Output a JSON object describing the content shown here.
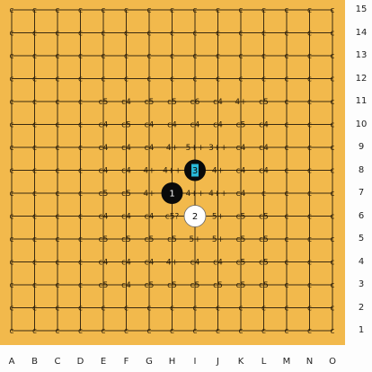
{
  "board": {
    "size": 15,
    "columns": [
      "A",
      "B",
      "C",
      "D",
      "E",
      "F",
      "G",
      "H",
      "I",
      "J",
      "K",
      "L",
      "M",
      "N",
      "O"
    ],
    "rows": [
      "15",
      "14",
      "13",
      "12",
      "11",
      "10",
      "9",
      "8",
      "7",
      "6",
      "5",
      "4",
      "3",
      "2",
      "1"
    ],
    "default_mark": "c",
    "board_color": "#f2b94c"
  },
  "marks": [
    {
      "r": 12,
      "c": 4,
      "t": "c5"
    },
    {
      "r": 12,
      "c": 5,
      "t": "c4"
    },
    {
      "r": 12,
      "c": 6,
      "t": "c5"
    },
    {
      "r": 12,
      "c": 7,
      "t": "c5"
    },
    {
      "r": 12,
      "c": 8,
      "t": "c5"
    },
    {
      "r": 12,
      "c": 9,
      "t": "c5"
    },
    {
      "r": 12,
      "c": 10,
      "t": "c5"
    },
    {
      "r": 12,
      "c": 11,
      "t": "c5"
    },
    {
      "r": 11,
      "c": 4,
      "t": "c4"
    },
    {
      "r": 11,
      "c": 5,
      "t": "c4"
    },
    {
      "r": 11,
      "c": 6,
      "t": "c4"
    },
    {
      "r": 11,
      "c": 7,
      "t": "4+"
    },
    {
      "r": 11,
      "c": 8,
      "t": "c4"
    },
    {
      "r": 11,
      "c": 9,
      "t": "c4"
    },
    {
      "r": 11,
      "c": 10,
      "t": "c5"
    },
    {
      "r": 11,
      "c": 11,
      "t": "c5"
    },
    {
      "r": 10,
      "c": 4,
      "t": "c5"
    },
    {
      "r": 10,
      "c": 5,
      "t": "c5"
    },
    {
      "r": 10,
      "c": 6,
      "t": "c5"
    },
    {
      "r": 10,
      "c": 7,
      "t": "c5"
    },
    {
      "r": 10,
      "c": 8,
      "t": "5+"
    },
    {
      "r": 10,
      "c": 9,
      "t": "5+"
    },
    {
      "r": 10,
      "c": 10,
      "t": "c5"
    },
    {
      "r": 10,
      "c": 11,
      "t": "c5"
    },
    {
      "r": 9,
      "c": 4,
      "t": "c4"
    },
    {
      "r": 9,
      "c": 5,
      "t": "c4"
    },
    {
      "r": 9,
      "c": 6,
      "t": "c4"
    },
    {
      "r": 9,
      "c": 7,
      "t": "c5?"
    },
    {
      "r": 9,
      "c": 9,
      "t": "5+"
    },
    {
      "r": 9,
      "c": 10,
      "t": "c5"
    },
    {
      "r": 9,
      "c": 11,
      "t": "c5"
    },
    {
      "r": 8,
      "c": 4,
      "t": "c5"
    },
    {
      "r": 8,
      "c": 5,
      "t": "c5"
    },
    {
      "r": 8,
      "c": 6,
      "t": "4+"
    },
    {
      "r": 8,
      "c": 8,
      "t": "4++"
    },
    {
      "r": 8,
      "c": 9,
      "t": "4++"
    },
    {
      "r": 8,
      "c": 10,
      "t": "c4"
    },
    {
      "r": 7,
      "c": 4,
      "t": "c4"
    },
    {
      "r": 7,
      "c": 5,
      "t": "c4"
    },
    {
      "r": 7,
      "c": 6,
      "t": "4+"
    },
    {
      "r": 7,
      "c": 7,
      "t": "4++"
    },
    {
      "r": 7,
      "c": 9,
      "t": "4+"
    },
    {
      "r": 7,
      "c": 10,
      "t": "c4"
    },
    {
      "r": 7,
      "c": 11,
      "t": "c4"
    },
    {
      "r": 6,
      "c": 4,
      "t": "c4"
    },
    {
      "r": 6,
      "c": 5,
      "t": "c4"
    },
    {
      "r": 6,
      "c": 6,
      "t": "c4"
    },
    {
      "r": 6,
      "c": 7,
      "t": "4+"
    },
    {
      "r": 6,
      "c": 8,
      "t": "5++"
    },
    {
      "r": 6,
      "c": 9,
      "t": "3++"
    },
    {
      "r": 6,
      "c": 10,
      "t": "c4"
    },
    {
      "r": 6,
      "c": 11,
      "t": "c4"
    },
    {
      "r": 5,
      "c": 4,
      "t": "c4"
    },
    {
      "r": 5,
      "c": 5,
      "t": "c5"
    },
    {
      "r": 5,
      "c": 6,
      "t": "c4"
    },
    {
      "r": 5,
      "c": 7,
      "t": "c4"
    },
    {
      "r": 5,
      "c": 8,
      "t": "c4"
    },
    {
      "r": 5,
      "c": 9,
      "t": "c4"
    },
    {
      "r": 5,
      "c": 10,
      "t": "c5"
    },
    {
      "r": 5,
      "c": 11,
      "t": "c4"
    },
    {
      "r": 4,
      "c": 4,
      "t": "c5"
    },
    {
      "r": 4,
      "c": 5,
      "t": "c4"
    },
    {
      "r": 4,
      "c": 6,
      "t": "c5"
    },
    {
      "r": 4,
      "c": 7,
      "t": "c5"
    },
    {
      "r": 4,
      "c": 8,
      "t": "c6"
    },
    {
      "r": 4,
      "c": 9,
      "t": "c4"
    },
    {
      "r": 4,
      "c": 10,
      "t": "4+"
    },
    {
      "r": 4,
      "c": 11,
      "t": "c5"
    }
  ],
  "stones": [
    {
      "r": 8,
      "c": 7,
      "color": "black",
      "num": "1"
    },
    {
      "r": 9,
      "c": 8,
      "color": "white",
      "num": "2"
    },
    {
      "r": 7,
      "c": 8,
      "color": "black",
      "num": "3",
      "last": true
    }
  ],
  "colors": {
    "last_move_highlight": "#29b8d8",
    "black": "#0a0a0a",
    "white": "#ffffff"
  }
}
